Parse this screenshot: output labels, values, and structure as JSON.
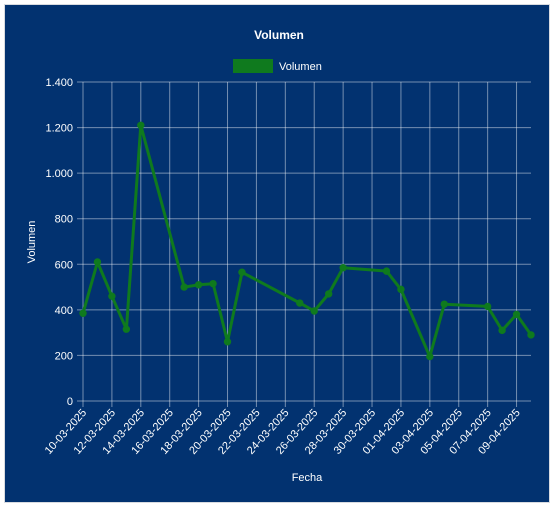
{
  "chart_data": {
    "type": "line",
    "title": "Volumen",
    "xlabel": "Fecha",
    "ylabel": "Volumen",
    "legend": {
      "position": "top",
      "entries": [
        "Volumen"
      ]
    },
    "ylim": [
      0,
      1400
    ],
    "y_ticks": [
      {
        "value": 0,
        "label": "0"
      },
      {
        "value": 200,
        "label": "200"
      },
      {
        "value": 400,
        "label": "400"
      },
      {
        "value": 600,
        "label": "600"
      },
      {
        "value": 800,
        "label": "800"
      },
      {
        "value": 1000,
        "label": "1.000"
      },
      {
        "value": 1200,
        "label": "1.200"
      },
      {
        "value": 1400,
        "label": "1.400"
      }
    ],
    "x_ticks": [
      "10-03-2025",
      "12-03-2025",
      "14-03-2025",
      "16-03-2025",
      "18-03-2025",
      "20-03-2025",
      "22-03-2025",
      "24-03-2025",
      "26-03-2025",
      "28-03-2025",
      "30-03-2025",
      "01-04-2025",
      "03-04-2025",
      "05-04-2025",
      "07-04-2025",
      "09-04-2025"
    ],
    "grid": true,
    "color": "#0f7a1e",
    "series": [
      {
        "name": "Volumen",
        "points": [
          {
            "x": "10-03-2025",
            "y": 385
          },
          {
            "x": "11-03-2025",
            "y": 610
          },
          {
            "x": "12-03-2025",
            "y": 460
          },
          {
            "x": "13-03-2025",
            "y": 315
          },
          {
            "x": "14-03-2025",
            "y": 1210
          },
          {
            "x": "17-03-2025",
            "y": 500
          },
          {
            "x": "18-03-2025",
            "y": 510
          },
          {
            "x": "19-03-2025",
            "y": 515
          },
          {
            "x": "20-03-2025",
            "y": 260
          },
          {
            "x": "21-03-2025",
            "y": 565
          },
          {
            "x": "25-03-2025",
            "y": 430
          },
          {
            "x": "26-03-2025",
            "y": 395
          },
          {
            "x": "27-03-2025",
            "y": 470
          },
          {
            "x": "28-03-2025",
            "y": 585
          },
          {
            "x": "31-03-2025",
            "y": 570
          },
          {
            "x": "01-04-2025",
            "y": 490
          },
          {
            "x": "03-04-2025",
            "y": 195
          },
          {
            "x": "04-04-2025",
            "y": 425
          },
          {
            "x": "07-04-2025",
            "y": 415
          },
          {
            "x": "08-04-2025",
            "y": 310
          },
          {
            "x": "09-04-2025",
            "y": 380
          },
          {
            "x": "10-04-2025",
            "y": 290
          }
        ]
      }
    ]
  }
}
